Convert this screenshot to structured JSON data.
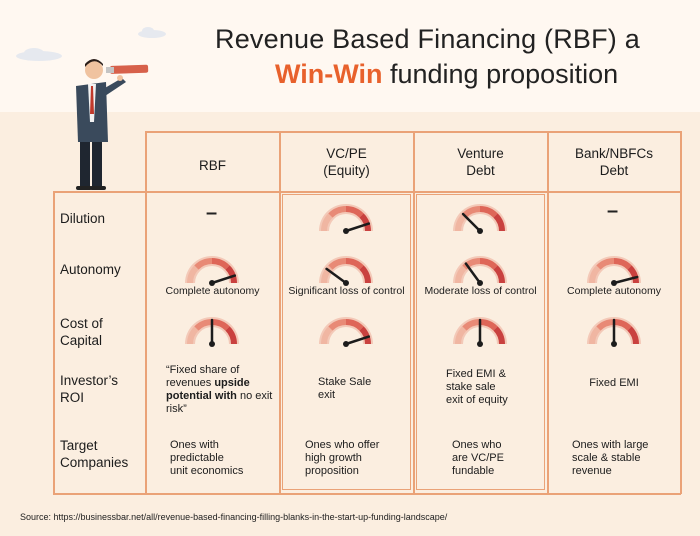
{
  "title": {
    "line1": "Revenue Based Financing (RBF) a",
    "highlight": "Win-Win",
    "line2_rest": " funding proposition"
  },
  "colors": {
    "accent": "#e8612c",
    "border": "#eaa277",
    "gauge": "#d9534f"
  },
  "columns": [
    "RBF",
    "VC/PE\n(Equity)",
    "Venture\nDebt",
    "Bank/NBFCs\nDebt"
  ],
  "rows": [
    "Dilution",
    "Autonomy",
    "Cost of\nCapital",
    "Investor’s\nROI",
    "Target\nCompanies"
  ],
  "dilution": {
    "rbf": "–",
    "bank": "–"
  },
  "autonomy_labels": [
    "Complete autonomy",
    "Significant loss of control",
    "Moderate loss of control",
    "Complete autonomy"
  ],
  "roi": {
    "rbf_pre": "“Fixed share of revenues ",
    "rbf_bold": "upside potential with",
    "rbf_post": " no exit risk”",
    "vcpe": "Stake Sale\nexit",
    "venture": "Fixed EMI &\nstake sale\nexit of equity",
    "bank": "Fixed EMI"
  },
  "target": {
    "rbf": "Ones with\npredictable\nunit economics",
    "vcpe": "Ones who offer\nhigh growth\nproposition",
    "venture": "Ones who\nare VC/PE\nfundable",
    "bank": "Ones with large\nscale & stable\nrevenue"
  },
  "gauge_levels": {
    "dilution": {
      "vcpe": 0.9,
      "venture": 0.25
    },
    "autonomy": {
      "rbf": 0.9,
      "vcpe": 0.2,
      "venture": 0.3,
      "bank": 0.92
    },
    "cost": {
      "rbf": 0.5,
      "vcpe": 0.9,
      "venture": 0.5,
      "bank": 0.5
    }
  },
  "source": "Source: https://businessbar.net/all/revenue-based-financing-filling-blanks-in-the-start-up-funding-landscape/"
}
